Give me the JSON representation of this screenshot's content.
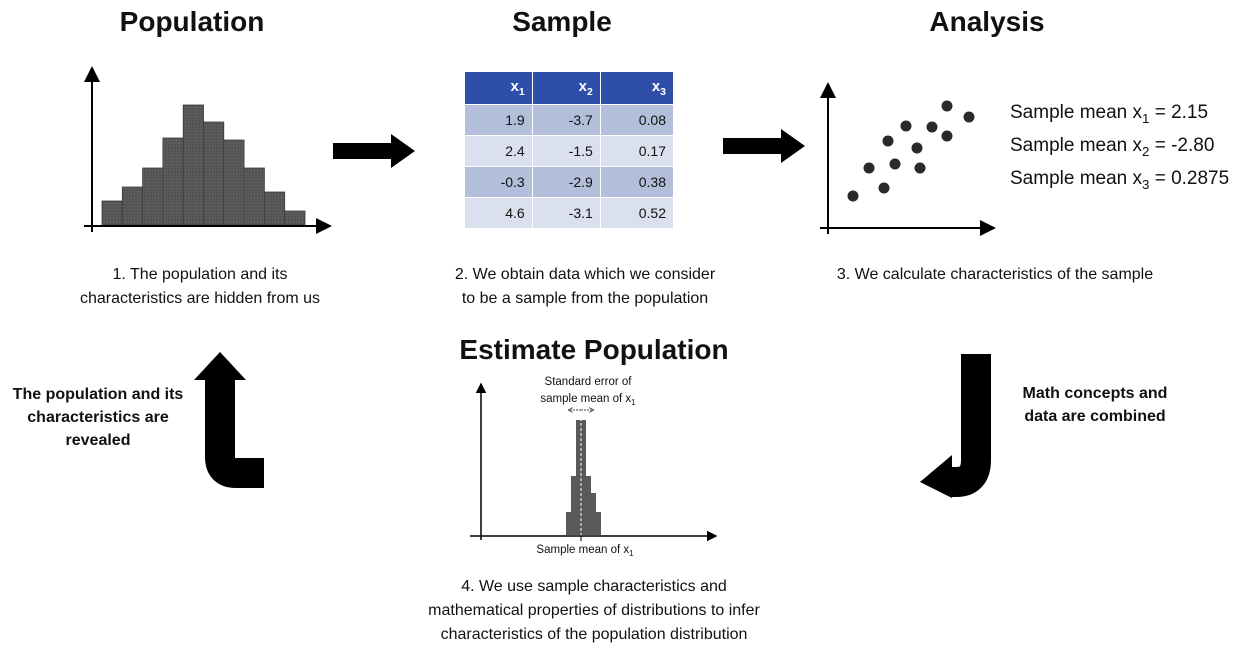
{
  "titles": {
    "population": "Population",
    "sample": "Sample",
    "analysis": "Analysis",
    "estimate": "Estimate Population"
  },
  "captions": {
    "step1_line1": "1. The population and its",
    "step1_line2": "characteristics are hidden from us",
    "step2_line1": "2. We obtain data which we consider",
    "step2_line2": "to be a sample from the population",
    "step3": "3. We calculate characteristics of the sample",
    "step4_line1": "4. We use sample characteristics and",
    "step4_line2": "mathematical properties of distributions to infer",
    "step4_line3": "characteristics of the population distribution"
  },
  "side_labels": {
    "left_line1": "The population and its",
    "left_line2": "characteristics are",
    "left_line3": "revealed",
    "right_line1": "Math concepts and",
    "right_line2": "data are combined"
  },
  "sample_table": {
    "headers": [
      {
        "base": "x",
        "sub": "1"
      },
      {
        "base": "x",
        "sub": "2"
      },
      {
        "base": "x",
        "sub": "3"
      }
    ],
    "rows": [
      [
        "1.9",
        "-3.7",
        "0.08"
      ],
      [
        "2.4",
        "-1.5",
        "0.17"
      ],
      [
        "-0.3",
        "-2.9",
        "0.38"
      ],
      [
        "4.6",
        "-3.1",
        "0.52"
      ]
    ]
  },
  "sample_means": [
    {
      "prefix": "Sample mean x",
      "sub": "1",
      "value": " = 2.15"
    },
    {
      "prefix": "Sample mean x",
      "sub": "2",
      "value": " = -2.80"
    },
    {
      "prefix": "Sample mean x",
      "sub": "3",
      "value": " = 0.2875"
    }
  ],
  "estimate_plot": {
    "se_label_line1": "Standard error of",
    "se_label_line2": "sample mean of x",
    "se_label_sub": "1",
    "axis_label": "Sample mean of x",
    "axis_label_sub": "1"
  },
  "colors": {
    "bar_fill": "#5a5a5a",
    "table_header": "#2f4eaa",
    "table_row_dark": "#b3bedb",
    "table_row_light": "#dbe0ee",
    "arrow": "#000000"
  }
}
